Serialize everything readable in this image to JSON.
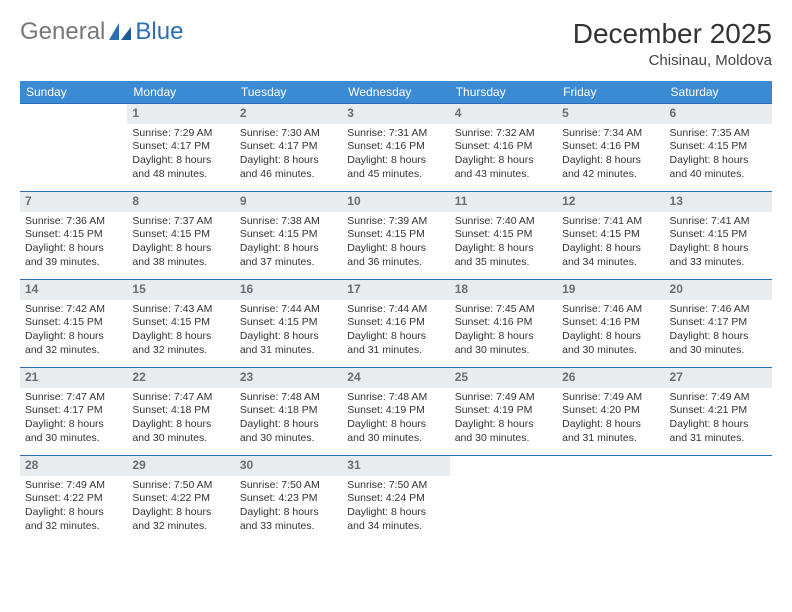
{
  "brand": {
    "part1": "General",
    "part2": "Blue"
  },
  "title": "December 2025",
  "location": "Chisinau, Moldova",
  "colors": {
    "header_bg": "#3b8bd4",
    "header_text": "#ffffff",
    "daynum_bg": "#e8ecef",
    "daynum_text": "#6a6f75",
    "border": "#2a6fb5",
    "body_text": "#333333",
    "page_bg": "#ffffff"
  },
  "typography": {
    "title_fontsize": 28,
    "location_fontsize": 15,
    "header_fontsize": 12,
    "cell_fontsize": 10.5,
    "logo_fontsize": 24
  },
  "headers": [
    "Sunday",
    "Monday",
    "Tuesday",
    "Wednesday",
    "Thursday",
    "Friday",
    "Saturday"
  ],
  "weeks": [
    [
      {
        "blank": true
      },
      {
        "day": "1",
        "sunrise": "Sunrise: 7:29 AM",
        "sunset": "Sunset: 4:17 PM",
        "d1": "Daylight: 8 hours",
        "d2": "and 48 minutes."
      },
      {
        "day": "2",
        "sunrise": "Sunrise: 7:30 AM",
        "sunset": "Sunset: 4:17 PM",
        "d1": "Daylight: 8 hours",
        "d2": "and 46 minutes."
      },
      {
        "day": "3",
        "sunrise": "Sunrise: 7:31 AM",
        "sunset": "Sunset: 4:16 PM",
        "d1": "Daylight: 8 hours",
        "d2": "and 45 minutes."
      },
      {
        "day": "4",
        "sunrise": "Sunrise: 7:32 AM",
        "sunset": "Sunset: 4:16 PM",
        "d1": "Daylight: 8 hours",
        "d2": "and 43 minutes."
      },
      {
        "day": "5",
        "sunrise": "Sunrise: 7:34 AM",
        "sunset": "Sunset: 4:16 PM",
        "d1": "Daylight: 8 hours",
        "d2": "and 42 minutes."
      },
      {
        "day": "6",
        "sunrise": "Sunrise: 7:35 AM",
        "sunset": "Sunset: 4:15 PM",
        "d1": "Daylight: 8 hours",
        "d2": "and 40 minutes."
      }
    ],
    [
      {
        "day": "7",
        "sunrise": "Sunrise: 7:36 AM",
        "sunset": "Sunset: 4:15 PM",
        "d1": "Daylight: 8 hours",
        "d2": "and 39 minutes."
      },
      {
        "day": "8",
        "sunrise": "Sunrise: 7:37 AM",
        "sunset": "Sunset: 4:15 PM",
        "d1": "Daylight: 8 hours",
        "d2": "and 38 minutes."
      },
      {
        "day": "9",
        "sunrise": "Sunrise: 7:38 AM",
        "sunset": "Sunset: 4:15 PM",
        "d1": "Daylight: 8 hours",
        "d2": "and 37 minutes."
      },
      {
        "day": "10",
        "sunrise": "Sunrise: 7:39 AM",
        "sunset": "Sunset: 4:15 PM",
        "d1": "Daylight: 8 hours",
        "d2": "and 36 minutes."
      },
      {
        "day": "11",
        "sunrise": "Sunrise: 7:40 AM",
        "sunset": "Sunset: 4:15 PM",
        "d1": "Daylight: 8 hours",
        "d2": "and 35 minutes."
      },
      {
        "day": "12",
        "sunrise": "Sunrise: 7:41 AM",
        "sunset": "Sunset: 4:15 PM",
        "d1": "Daylight: 8 hours",
        "d2": "and 34 minutes."
      },
      {
        "day": "13",
        "sunrise": "Sunrise: 7:41 AM",
        "sunset": "Sunset: 4:15 PM",
        "d1": "Daylight: 8 hours",
        "d2": "and 33 minutes."
      }
    ],
    [
      {
        "day": "14",
        "sunrise": "Sunrise: 7:42 AM",
        "sunset": "Sunset: 4:15 PM",
        "d1": "Daylight: 8 hours",
        "d2": "and 32 minutes."
      },
      {
        "day": "15",
        "sunrise": "Sunrise: 7:43 AM",
        "sunset": "Sunset: 4:15 PM",
        "d1": "Daylight: 8 hours",
        "d2": "and 32 minutes."
      },
      {
        "day": "16",
        "sunrise": "Sunrise: 7:44 AM",
        "sunset": "Sunset: 4:15 PM",
        "d1": "Daylight: 8 hours",
        "d2": "and 31 minutes."
      },
      {
        "day": "17",
        "sunrise": "Sunrise: 7:44 AM",
        "sunset": "Sunset: 4:16 PM",
        "d1": "Daylight: 8 hours",
        "d2": "and 31 minutes."
      },
      {
        "day": "18",
        "sunrise": "Sunrise: 7:45 AM",
        "sunset": "Sunset: 4:16 PM",
        "d1": "Daylight: 8 hours",
        "d2": "and 30 minutes."
      },
      {
        "day": "19",
        "sunrise": "Sunrise: 7:46 AM",
        "sunset": "Sunset: 4:16 PM",
        "d1": "Daylight: 8 hours",
        "d2": "and 30 minutes."
      },
      {
        "day": "20",
        "sunrise": "Sunrise: 7:46 AM",
        "sunset": "Sunset: 4:17 PM",
        "d1": "Daylight: 8 hours",
        "d2": "and 30 minutes."
      }
    ],
    [
      {
        "day": "21",
        "sunrise": "Sunrise: 7:47 AM",
        "sunset": "Sunset: 4:17 PM",
        "d1": "Daylight: 8 hours",
        "d2": "and 30 minutes."
      },
      {
        "day": "22",
        "sunrise": "Sunrise: 7:47 AM",
        "sunset": "Sunset: 4:18 PM",
        "d1": "Daylight: 8 hours",
        "d2": "and 30 minutes."
      },
      {
        "day": "23",
        "sunrise": "Sunrise: 7:48 AM",
        "sunset": "Sunset: 4:18 PM",
        "d1": "Daylight: 8 hours",
        "d2": "and 30 minutes."
      },
      {
        "day": "24",
        "sunrise": "Sunrise: 7:48 AM",
        "sunset": "Sunset: 4:19 PM",
        "d1": "Daylight: 8 hours",
        "d2": "and 30 minutes."
      },
      {
        "day": "25",
        "sunrise": "Sunrise: 7:49 AM",
        "sunset": "Sunset: 4:19 PM",
        "d1": "Daylight: 8 hours",
        "d2": "and 30 minutes."
      },
      {
        "day": "26",
        "sunrise": "Sunrise: 7:49 AM",
        "sunset": "Sunset: 4:20 PM",
        "d1": "Daylight: 8 hours",
        "d2": "and 31 minutes."
      },
      {
        "day": "27",
        "sunrise": "Sunrise: 7:49 AM",
        "sunset": "Sunset: 4:21 PM",
        "d1": "Daylight: 8 hours",
        "d2": "and 31 minutes."
      }
    ],
    [
      {
        "day": "28",
        "sunrise": "Sunrise: 7:49 AM",
        "sunset": "Sunset: 4:22 PM",
        "d1": "Daylight: 8 hours",
        "d2": "and 32 minutes."
      },
      {
        "day": "29",
        "sunrise": "Sunrise: 7:50 AM",
        "sunset": "Sunset: 4:22 PM",
        "d1": "Daylight: 8 hours",
        "d2": "and 32 minutes."
      },
      {
        "day": "30",
        "sunrise": "Sunrise: 7:50 AM",
        "sunset": "Sunset: 4:23 PM",
        "d1": "Daylight: 8 hours",
        "d2": "and 33 minutes."
      },
      {
        "day": "31",
        "sunrise": "Sunrise: 7:50 AM",
        "sunset": "Sunset: 4:24 PM",
        "d1": "Daylight: 8 hours",
        "d2": "and 34 minutes."
      },
      {
        "blank": true
      },
      {
        "blank": true
      },
      {
        "blank": true
      }
    ]
  ]
}
